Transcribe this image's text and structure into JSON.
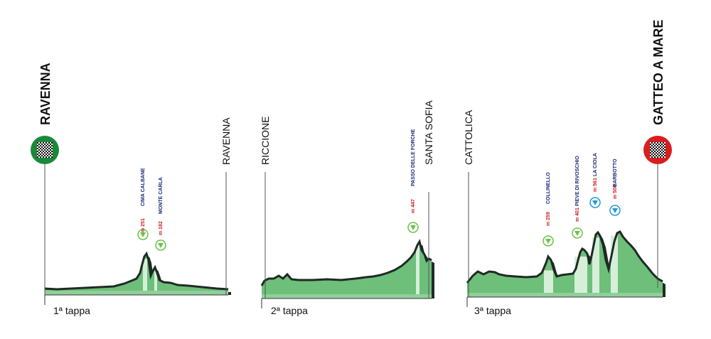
{
  "race": {
    "start_city": "RAVENNA",
    "finish_city": "GATTEO A MARE",
    "start_marker": "checkered-flag-icon",
    "finish_marker": "checkered-flag-icon",
    "start_marker_color": "#1a8a3a",
    "finish_marker_color": "#d81e1e"
  },
  "colors": {
    "profile_fill": "#6dbf7a",
    "profile_edge": "#1f2a24",
    "climb_band": "#d6efd9",
    "altitude_text": "#cc1f1f",
    "climb_name_text": "#1b2a7a",
    "category_3": "#6cc24a",
    "category_2": "#1e9ad6"
  },
  "stages": [
    {
      "label": "1ª tappa",
      "start": "",
      "finish": "RAVENNA",
      "climbs": [
        {
          "name": "CIMA CALBANE",
          "altitude": "m 251",
          "category_icon": "climb-category-3-icon"
        },
        {
          "name": "MONTE CARLA",
          "altitude": "m 182",
          "category_icon": "climb-category-3-icon"
        }
      ]
    },
    {
      "label": "2ª tappa",
      "start": "RICCIONE",
      "finish": "SANTA SOFIA",
      "climbs": [
        {
          "name": "PASSO DELLE FORCHE",
          "altitude": "m 447",
          "category_icon": "climb-category-3-icon"
        }
      ]
    },
    {
      "label": "3ª tappa",
      "start": "CATTOLICA",
      "finish": "",
      "climbs": [
        {
          "name": "COLLINELLO",
          "altitude": "m 259",
          "category_icon": "climb-category-3-icon"
        },
        {
          "name": "PIEVE DI RIVOSCHIO",
          "altitude": "m 401",
          "category_icon": "climb-category-3-icon"
        },
        {
          "name": "LA CIOLA",
          "altitude": "m 561",
          "category_icon": "climb-category-2-icon"
        },
        {
          "name": "BARBOTTO",
          "altitude": "m 500",
          "category_icon": "climb-category-2-icon"
        }
      ]
    }
  ]
}
